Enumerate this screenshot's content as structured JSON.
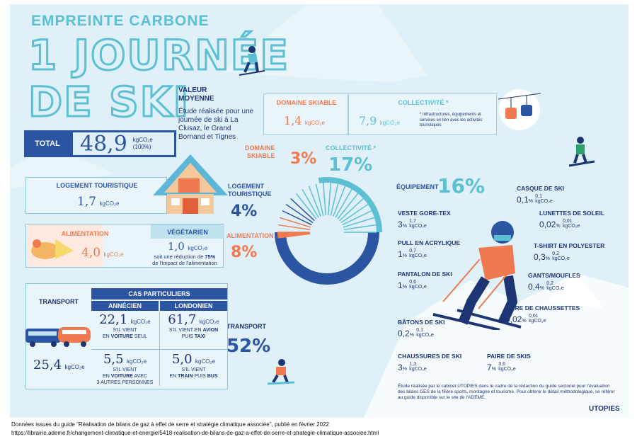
{
  "title": {
    "small": "EMPREINTE CARBONE",
    "line1": "1 JOURNÉE",
    "line2": "DE SKI"
  },
  "moyenne": {
    "label": "VALEUR\nMOYENNE",
    "desc": "Étude réalisée pour une journée de ski à La Clusaz, le Grand Bornand et Tignes"
  },
  "total": {
    "label": "TOTAL",
    "value": "48,9",
    "unit": "kgCO₂e",
    "pct": "(100%)"
  },
  "domaine": {
    "label": "DOMAINE SKIABLE",
    "value": "1,4",
    "unit": "kgCO₂e",
    "pct": "3%",
    "short": "DOMAINE\nSKIABLE"
  },
  "collectivite": {
    "label": "COLLECTIVITÉ *",
    "value": "7,9",
    "unit": "kgCO₂e",
    "note": "* Infrastructures, équipements et services en lien avec les activités touristiques",
    "pct": "17%",
    "short": "COLLECTIVITÉ *"
  },
  "logement": {
    "label": "LOGEMENT TOURISTIQUE",
    "value": "1,7",
    "unit": "kgCO₂e",
    "pct": "4%",
    "short": "LOGEMENT\nTOURISTIQUE"
  },
  "alimentation": {
    "label": "ALIMENTATION",
    "value": "4,0",
    "unit": "kgCO₂e",
    "pct": "8%"
  },
  "vegetarien": {
    "label": "VÉGÉTARIEN",
    "value": "1,0",
    "unit": "kgCO₂e",
    "desc1": "soit une réduction de ",
    "desc_bold": "75%",
    "desc2": "de l'impact de l'alimentation"
  },
  "transport": {
    "label": "TRANSPORT",
    "value": "25,4",
    "unit": "kgCO₂e",
    "pct": "52%",
    "cas_label": "CAS PARTICULIERS",
    "col1": "ANNÉCIEN",
    "col2": "LONDONIEN",
    "c1a_val": "22,1",
    "c1a_t1": "S'IL VIENT",
    "c1a_t2": "EN ",
    "c1a_b": "VOITURE",
    "c1a_t3": " SEUL",
    "c2a_val": "61,7",
    "c2a_t1": "S'IL VIENT EN ",
    "c2a_b": "AVION",
    "c2a_t2": "PUIS ",
    "c2a_b2": "TAXI",
    "c1b_val": "5,5",
    "c1b_t1": "S'IL VIENT",
    "c1b_t2": "EN ",
    "c1b_b": "VOITURE",
    "c1b_t3": " AVEC",
    "c1b_t4": "3 AUTRES PERSONNES",
    "c2b_val": "5,0",
    "c2b_t1": "S'IL VIENT",
    "c2b_t2": "EN ",
    "c2b_b": "TRAIN",
    "c2b_t3": " PUIS ",
    "c2b_b2": "BUS"
  },
  "equipement": {
    "label": "ÉQUIPEMENT",
    "pct": "16%",
    "items": [
      {
        "name": "CASQUE DE SKI",
        "pct": "0,1",
        "kg": "0,1"
      },
      {
        "name": "VESTE GORE-TEX",
        "pct": "3",
        "kg": "1,7"
      },
      {
        "name": "LUNETTES DE SOLEIL",
        "pct": "0,02",
        "kg": "0,01"
      },
      {
        "name": "PULL EN ACRYLIQUE",
        "pct": "1",
        "kg": "0,7"
      },
      {
        "name": "T-SHIRT EN POLYESTER",
        "pct": "0,3",
        "kg": "0,2"
      },
      {
        "name": "PANTALON DE SKI",
        "pct": "1",
        "kg": "0,6"
      },
      {
        "name": "GANTS/MOUFLES",
        "pct": "0,4",
        "kg": "0,2"
      },
      {
        "name": "PAIRE DE CHAUSSETTES",
        "pct": "0,02",
        "kg": "0,01"
      },
      {
        "name": "BÂTONS DE SKI",
        "pct": "0,2",
        "kg": "0,1"
      },
      {
        "name": "CHAUSSURES DE SKI",
        "pct": "3",
        "kg": "1,3"
      },
      {
        "name": "PAIRE DE SKIS",
        "pct": "7",
        "kg": "3,6"
      }
    ],
    "unit": "kgCO₂e"
  },
  "study_note": "Étude réalisée par le cabinet UTOPIES dans le cadre de la rédaction du guide sectoriel pour l'évaluation des bilans GES de la filière sports, montagne et tourisme. Pour obtenir le détail méthodologique, se référer au guide disponible sur le site de l'ADEME.",
  "logo": "UTOPIES",
  "footer": {
    "line1": "Données issues du guide \"Réalisation de bilans de gaz à effet de serre et stratégie climatique associée\", publié en février 2022",
    "line2": "https://librairie.ademe.fr/changement-climatique-et-energie/5418-realisation-de-bilans-de-gaz-a-effet-de-serre-et-strategie-climatique-associee.html"
  },
  "colors": {
    "navy": "#2b54a3",
    "dark": "#1e3573",
    "orange": "#f07a50",
    "teal": "#5cc0d2",
    "bg": "#dff0f8"
  }
}
